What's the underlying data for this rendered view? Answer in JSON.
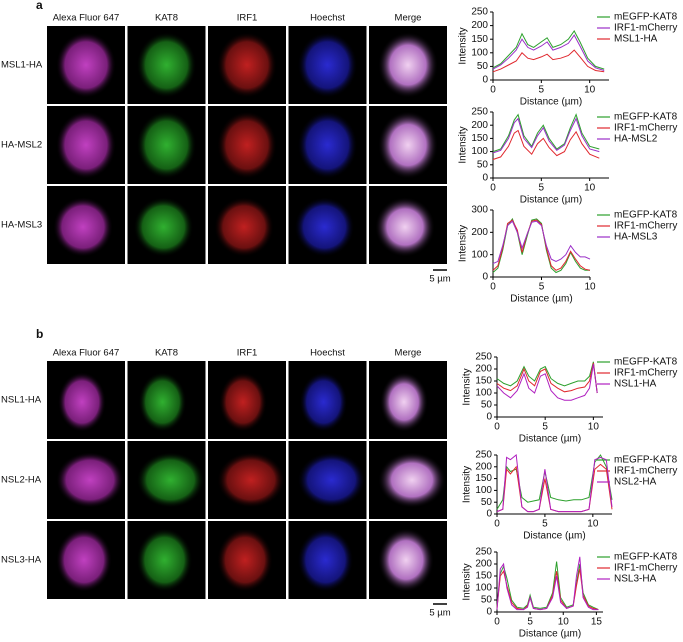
{
  "panels": [
    {
      "label": "a",
      "column_headers": [
        "Alexa Fluor 647",
        "KAT8",
        "IRF1",
        "Hoechst",
        "Merge"
      ],
      "row_labels": [
        "MSL1-HA",
        "HA-MSL2",
        "HA-MSL3"
      ],
      "scale_bar": "5 µm"
    },
    {
      "label": "b",
      "column_headers": [
        "Alexa Fluor 647",
        "KAT8",
        "IRF1",
        "Hoechst",
        "Merge"
      ],
      "row_labels": [
        "NSL1-HA",
        "NSL2-HA",
        "NSL3-HA"
      ],
      "scale_bar": "5 µm"
    }
  ],
  "chart_data": [
    {
      "type": "line",
      "x_label": "Distance (µm)",
      "y_label": "Intensity",
      "xlim": [
        0,
        12
      ],
      "ylim": [
        0,
        250
      ],
      "xticks": [
        0,
        5,
        10
      ],
      "yticks": [
        0,
        50,
        100,
        150,
        200,
        250
      ],
      "x": [
        0,
        0.8,
        1.6,
        2.4,
        3,
        3.6,
        4.2,
        5,
        5.6,
        6.2,
        7,
        7.8,
        8.4,
        9,
        9.8,
        10.6,
        11.5
      ],
      "series": [
        {
          "name": "mEGFP-KAT8",
          "color": "#2ca02c",
          "values": [
            45,
            60,
            90,
            120,
            170,
            130,
            120,
            140,
            155,
            120,
            130,
            150,
            180,
            140,
            80,
            50,
            40
          ]
        },
        {
          "name": "IRF1-mCherry",
          "color": "#9b30c8",
          "values": [
            40,
            55,
            80,
            110,
            150,
            120,
            110,
            125,
            140,
            110,
            120,
            135,
            165,
            125,
            70,
            45,
            35
          ]
        },
        {
          "name": "MSL1-HA",
          "color": "#e0282e",
          "values": [
            30,
            40,
            55,
            70,
            100,
            80,
            75,
            85,
            95,
            75,
            80,
            90,
            110,
            85,
            50,
            35,
            30
          ]
        }
      ]
    },
    {
      "type": "line",
      "x_label": "Distance (µm)",
      "y_label": "Intensity",
      "xlim": [
        0,
        12
      ],
      "ylim": [
        0,
        250
      ],
      "xticks": [
        0,
        5,
        10
      ],
      "yticks": [
        0,
        50,
        100,
        150,
        200,
        250
      ],
      "x": [
        0,
        0.8,
        1.6,
        2.2,
        2.6,
        3.2,
        4,
        4.6,
        5.2,
        5.8,
        6.6,
        7.4,
        8,
        8.6,
        9.2,
        10,
        11
      ],
      "series": [
        {
          "name": "mEGFP-KAT8",
          "color": "#2ca02c",
          "values": [
            100,
            110,
            160,
            220,
            240,
            160,
            120,
            170,
            200,
            150,
            110,
            130,
            190,
            240,
            170,
            120,
            110
          ]
        },
        {
          "name": "IRF1-mCherry",
          "color": "#e0282e",
          "values": [
            70,
            80,
            120,
            170,
            180,
            120,
            90,
            130,
            150,
            115,
            85,
            100,
            145,
            175,
            130,
            90,
            75
          ]
        },
        {
          "name": "HA-MSL2",
          "color": "#9b30c8",
          "values": [
            95,
            105,
            150,
            210,
            225,
            150,
            115,
            160,
            190,
            140,
            105,
            125,
            180,
            225,
            160,
            110,
            100
          ]
        }
      ]
    },
    {
      "type": "line",
      "x_label": "Distance (µm)",
      "y_label": "Intensity",
      "xlim": [
        0,
        10
      ],
      "ylim": [
        0,
        300
      ],
      "xticks": [
        0,
        5,
        10
      ],
      "yticks": [
        0,
        100,
        200,
        300
      ],
      "x": [
        0,
        0.5,
        1,
        1.5,
        2,
        2.5,
        3,
        3.5,
        4,
        4.5,
        5,
        5.5,
        6,
        6.5,
        7,
        7.5,
        8,
        8.5,
        9,
        9.5,
        10
      ],
      "series": [
        {
          "name": "mEGFP-KAT8",
          "color": "#2ca02c",
          "values": [
            20,
            40,
            120,
            230,
            260,
            200,
            100,
            180,
            255,
            260,
            240,
            120,
            40,
            20,
            30,
            60,
            110,
            70,
            40,
            30,
            30
          ]
        },
        {
          "name": "IRF1-mCherry",
          "color": "#e0282e",
          "values": [
            30,
            50,
            130,
            240,
            255,
            210,
            110,
            190,
            250,
            255,
            235,
            130,
            50,
            30,
            40,
            70,
            115,
            80,
            50,
            35,
            30
          ]
        },
        {
          "name": "HA-MSL3",
          "color": "#9b30c8",
          "values": [
            60,
            70,
            140,
            230,
            250,
            200,
            130,
            190,
            245,
            250,
            230,
            140,
            80,
            70,
            80,
            100,
            140,
            110,
            90,
            90,
            80
          ]
        }
      ]
    },
    {
      "type": "line",
      "x_label": "Distance (µm)",
      "y_label": "Intensity",
      "xlim": [
        0,
        11
      ],
      "ylim": [
        0,
        250
      ],
      "xticks": [
        0,
        5,
        10
      ],
      "yticks": [
        0,
        50,
        100,
        150,
        200,
        250
      ],
      "x": [
        0,
        0.7,
        1.4,
        2.1,
        2.8,
        3.3,
        3.9,
        4.5,
        5,
        5.6,
        6.3,
        7,
        7.7,
        8.4,
        9.1,
        9.6,
        10,
        10.4
      ],
      "series": [
        {
          "name": "mEGFP-KAT8",
          "color": "#2ca02c",
          "values": [
            160,
            140,
            130,
            150,
            210,
            170,
            150,
            200,
            210,
            160,
            140,
            130,
            140,
            150,
            150,
            170,
            230,
            100
          ]
        },
        {
          "name": "IRF1-mCherry",
          "color": "#e0282e",
          "values": [
            140,
            120,
            110,
            130,
            200,
            150,
            130,
            190,
            200,
            140,
            120,
            105,
            110,
            120,
            125,
            150,
            225,
            100
          ]
        },
        {
          "name": "NSL1-HA",
          "color": "#b020c0",
          "values": [
            130,
            100,
            80,
            110,
            180,
            120,
            100,
            170,
            180,
            110,
            80,
            70,
            70,
            80,
            90,
            120,
            220,
            100
          ]
        }
      ]
    },
    {
      "type": "line",
      "x_label": "Distance (µm)",
      "y_label": "Intensity",
      "xlim": [
        0,
        12
      ],
      "ylim": [
        0,
        250
      ],
      "xticks": [
        0,
        5,
        10
      ],
      "yticks": [
        0,
        50,
        100,
        150,
        200,
        250
      ],
      "x": [
        0,
        0.6,
        1,
        1.4,
        2,
        2.6,
        3.2,
        3.8,
        4.4,
        5,
        5.6,
        6.4,
        7.2,
        8,
        8.8,
        9.6,
        10.2,
        10.8,
        11.4,
        12
      ],
      "series": [
        {
          "name": "mEGFP-KAT8",
          "color": "#2ca02c",
          "values": [
            20,
            60,
            200,
            180,
            190,
            70,
            50,
            55,
            60,
            180,
            70,
            60,
            55,
            60,
            60,
            70,
            220,
            250,
            200,
            60
          ]
        },
        {
          "name": "IRF1-mCherry",
          "color": "#e0282e",
          "values": [
            10,
            20,
            190,
            170,
            200,
            30,
            10,
            10,
            20,
            150,
            20,
            10,
            10,
            10,
            10,
            20,
            190,
            210,
            190,
            20
          ]
        },
        {
          "name": "NSL2-HA",
          "color": "#b020c0",
          "values": [
            10,
            20,
            240,
            230,
            250,
            30,
            10,
            10,
            20,
            190,
            20,
            10,
            10,
            10,
            10,
            20,
            230,
            240,
            230,
            30
          ]
        }
      ]
    },
    {
      "type": "line",
      "x_label": "Distance (µm)",
      "y_label": "Intensity",
      "xlim": [
        0,
        16
      ],
      "ylim": [
        0,
        250
      ],
      "xticks": [
        0,
        5,
        10,
        15
      ],
      "yticks": [
        0,
        50,
        100,
        150,
        200,
        250
      ],
      "x": [
        0,
        0.5,
        1,
        1.5,
        2.2,
        3,
        4,
        4.6,
        5,
        5.5,
        6.5,
        7.5,
        8.4,
        9,
        9.6,
        10.5,
        11.5,
        12,
        12.5,
        13,
        13.8,
        14.5,
        15.3
      ],
      "series": [
        {
          "name": "mEGFP-KAT8",
          "color": "#2ca02c",
          "values": [
            20,
            160,
            190,
            140,
            50,
            20,
            15,
            30,
            70,
            20,
            15,
            20,
            80,
            210,
            60,
            20,
            30,
            120,
            200,
            80,
            30,
            20,
            10
          ]
        },
        {
          "name": "IRF1-mCherry",
          "color": "#e0282e",
          "values": [
            15,
            150,
            170,
            110,
            40,
            15,
            10,
            25,
            60,
            15,
            10,
            15,
            70,
            170,
            50,
            15,
            25,
            110,
            180,
            70,
            25,
            15,
            10
          ]
        },
        {
          "name": "NSL3-HA",
          "color": "#b020c0",
          "values": [
            10,
            180,
            200,
            100,
            30,
            10,
            10,
            20,
            60,
            15,
            10,
            15,
            60,
            150,
            40,
            15,
            25,
            150,
            230,
            60,
            20,
            10,
            10
          ]
        }
      ]
    }
  ]
}
